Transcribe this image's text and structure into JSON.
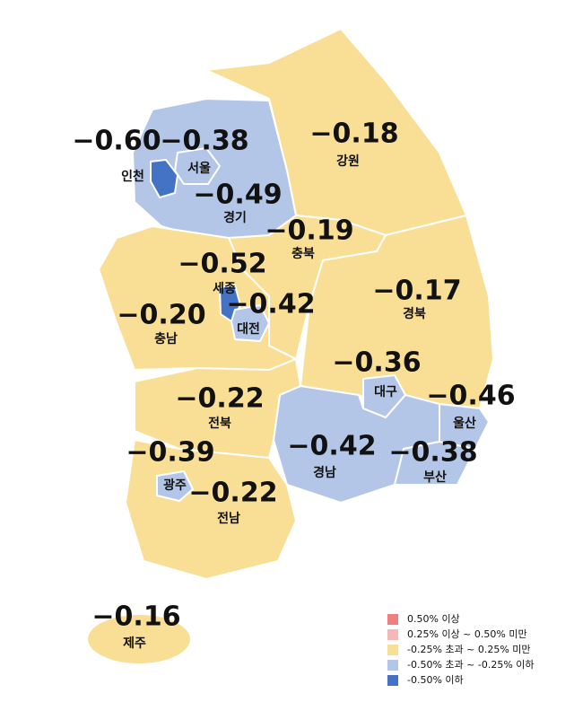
{
  "map": {
    "regions": [
      {
        "name": "인천",
        "value": "−0.60",
        "color": "#4472c4"
      },
      {
        "name": "서울",
        "value": "−0.38",
        "color": "#b4c6e7"
      },
      {
        "name": "경기",
        "value": "−0.49",
        "color": "#b4c6e7"
      },
      {
        "name": "강원",
        "value": "−0.18",
        "color": "#f9df96"
      },
      {
        "name": "충북",
        "value": "−0.19",
        "color": "#f9df96"
      },
      {
        "name": "세종",
        "value": "−0.52",
        "color": "#4472c4"
      },
      {
        "name": "대전",
        "value": "−0.42",
        "color": "#b4c6e7"
      },
      {
        "name": "충남",
        "value": "−0.20",
        "color": "#f9df96"
      },
      {
        "name": "경북",
        "value": "−0.17",
        "color": "#f9df96"
      },
      {
        "name": "대구",
        "value": "−0.36",
        "color": "#b4c6e7"
      },
      {
        "name": "울산",
        "value": "−0.46",
        "color": "#b4c6e7"
      },
      {
        "name": "전북",
        "value": "−0.22",
        "color": "#f9df96"
      },
      {
        "name": "경남",
        "value": "−0.42",
        "color": "#b4c6e7"
      },
      {
        "name": "부산",
        "value": "−0.38",
        "color": "#b4c6e7"
      },
      {
        "name": "광주",
        "value": "−0.39",
        "color": "#b4c6e7"
      },
      {
        "name": "전남",
        "value": "−0.22",
        "color": "#f9df96"
      },
      {
        "name": "제주",
        "value": "−0.16",
        "color": "#f9df96"
      }
    ],
    "legend": [
      {
        "label": "0.50% 이상",
        "color": "#f08080"
      },
      {
        "label": "0.25% 이상 ~ 0.50% 미만",
        "color": "#f4b8b8"
      },
      {
        "label": "-0.25% 초과 ~ 0.25% 미만",
        "color": "#f9df96"
      },
      {
        "label": "-0.50% 초과 ~ -0.25% 이하",
        "color": "#b4c6e7"
      },
      {
        "label": "-0.50% 이하",
        "color": "#4472c4"
      }
    ]
  }
}
